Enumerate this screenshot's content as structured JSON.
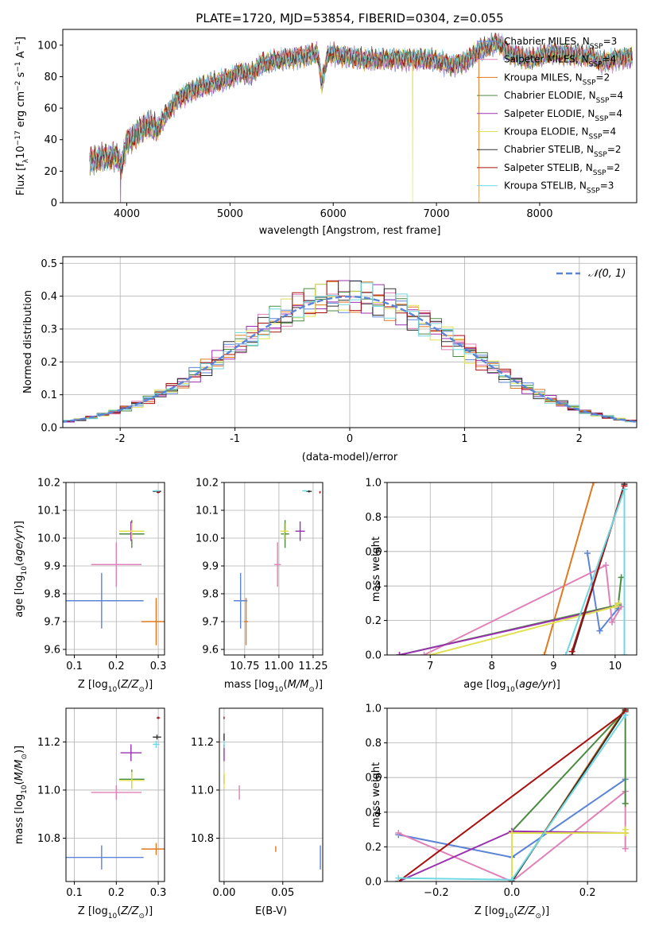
{
  "colors": {
    "Chabrier MILES": "#5b84d6",
    "Salpeter MILES": "#e080b8",
    "Kroupa MILES": "#e07820",
    "Chabrier ELODIE": "#4a8a40",
    "Salpeter ELODIE": "#9a30b0",
    "Kroupa ELODIE": "#e0e050",
    "Chabrier STELIB": "#303030",
    "Salpeter STELIB": "#aa1010",
    "Kroupa STELIB": "#70d8e0"
  },
  "model_order": [
    "Chabrier MILES",
    "Salpeter MILES",
    "Kroupa MILES",
    "Chabrier ELODIE",
    "Salpeter ELODIE",
    "Kroupa ELODIE",
    "Chabrier STELIB",
    "Salpeter STELIB",
    "Kroupa STELIB"
  ],
  "chart_data": [
    {
      "id": "spectrum",
      "type": "line",
      "title": "PLATE=1720, MJD=53854, FIBERID=0304, z=0.055",
      "xlabel": "wavelength [Angstrom, rest frame]",
      "ylabel": "Flux [f_λ10^-17 erg cm^-2 s^-1 A^-1]",
      "xlim": [
        3380,
        8940
      ],
      "ylim": [
        0,
        110
      ],
      "xticks": [
        4000,
        5000,
        6000,
        7000,
        8000
      ],
      "yticks": [
        0,
        20,
        40,
        60,
        80,
        100
      ],
      "continuum": {
        "x": [
          3640,
          3700,
          3800,
          3900,
          3950,
          4000,
          4100,
          4200,
          4300,
          4400,
          4500,
          4600,
          4700,
          4800,
          4900,
          5000,
          5100,
          5200,
          5300,
          5500,
          5700,
          5850,
          5890,
          5950,
          6100,
          6300,
          6500,
          6700,
          6900,
          7000,
          7150,
          7300,
          7400,
          7500,
          7600,
          7700,
          7900,
          8100,
          8300,
          8500,
          8600,
          8800
        ],
        "y": [
          26,
          28,
          29,
          29,
          24,
          38,
          44,
          50,
          47,
          58,
          66,
          70,
          73,
          75,
          77,
          79,
          83,
          81,
          88,
          91,
          93,
          95,
          75,
          95,
          93,
          91,
          91,
          91,
          91,
          90,
          87,
          90,
          96,
          99,
          102,
          95,
          91,
          95,
          94,
          93,
          89,
          92
        ]
      },
      "dropouts": [
        {
          "series": "Salpeter ELODIE",
          "x": 3940
        },
        {
          "series": "Kroupa ELODIE",
          "x": 6770
        },
        {
          "series": "Kroupa MILES",
          "x": 7410
        }
      ],
      "legend": [
        {
          "series": "Chabrier MILES",
          "label": "Chabrier MILES, N",
          "sub": "SSP",
          "value": "=3"
        },
        {
          "series": "Salpeter MILES",
          "label": "Salpeter MILES, N",
          "sub": "SSP",
          "value": "=4"
        },
        {
          "series": "Kroupa MILES",
          "label": "Kroupa MILES, N",
          "sub": "SSP",
          "value": "=2"
        },
        {
          "series": "Chabrier ELODIE",
          "label": "Chabrier ELODIE, N",
          "sub": "SSP",
          "value": "=4"
        },
        {
          "series": "Salpeter ELODIE",
          "label": "Salpeter ELODIE, N",
          "sub": "SSP",
          "value": "=4"
        },
        {
          "series": "Kroupa ELODIE",
          "label": "Kroupa ELODIE, N",
          "sub": "SSP",
          "value": "=4"
        },
        {
          "series": "Chabrier STELIB",
          "label": "Chabrier STELIB, N",
          "sub": "SSP",
          "value": "=2"
        },
        {
          "series": "Salpeter STELIB",
          "label": "Salpeter STELIB, N",
          "sub": "SSP",
          "value": "=2"
        },
        {
          "series": "Kroupa STELIB",
          "label": "Kroupa STELIB, N",
          "sub": "SSP",
          "value": "=3"
        }
      ],
      "legend_placement": "top-right",
      "grid": false
    },
    {
      "id": "residuals",
      "type": "histogram",
      "xlabel": "(data-model)/error",
      "ylabel": "Normed distribution",
      "xlim": [
        -2.5,
        2.5
      ],
      "ylim": [
        0,
        0.52
      ],
      "xticks": [
        -2,
        -1,
        0,
        1,
        2
      ],
      "yticks": [
        0.0,
        0.1,
        0.2,
        0.3,
        0.4,
        0.5
      ],
      "bin_width": 0.1,
      "reference": {
        "name": "N(0,1)",
        "label": "𝒩(0, 1)",
        "sigma": 1,
        "color": "#5b84d6"
      },
      "legend_placement": "top-right",
      "grid": true
    },
    {
      "id": "age_vs_Z",
      "type": "errorbar",
      "xlabel": "Z [log10(Z/Z⊙)]",
      "ylabel": "age [log10(age/yr)]",
      "xlim": [
        0.08,
        0.315
      ],
      "ylim": [
        9.58,
        10.2
      ],
      "xticks": [
        0.1,
        0.2,
        0.3
      ],
      "yticks": [
        9.6,
        9.7,
        9.8,
        9.9,
        10.0,
        10.1,
        10.2
      ],
      "grid": true,
      "points": [
        {
          "series": "Chabrier MILES",
          "x": 0.165,
          "y": 9.775,
          "xerr": 0.1,
          "yerr": 0.1
        },
        {
          "series": "Salpeter MILES",
          "x": 0.2,
          "y": 9.905,
          "xerr": 0.06,
          "yerr": 0.08
        },
        {
          "series": "Kroupa MILES",
          "x": 0.295,
          "y": 9.7,
          "xerr": 0.035,
          "yerr": 0.085
        },
        {
          "series": "Chabrier ELODIE",
          "x": 0.237,
          "y": 10.015,
          "xerr": 0.03,
          "yerr": 0.05
        },
        {
          "series": "Salpeter ELODIE",
          "x": 0.235,
          "y": 10.025,
          "xerr": 0.025,
          "yerr": 0.035
        },
        {
          "series": "Kroupa ELODIE",
          "x": 0.237,
          "y": 10.025,
          "xerr": 0.03,
          "yerr": 0.03
        },
        {
          "series": "Chabrier STELIB",
          "x": 0.297,
          "y": 10.168,
          "xerr": 0.01,
          "yerr": 0.004
        },
        {
          "series": "Salpeter STELIB",
          "x": 0.3,
          "y": 10.165,
          "xerr": 0.004,
          "yerr": 0.004
        },
        {
          "series": "Kroupa STELIB",
          "x": 0.295,
          "y": 10.17,
          "xerr": 0.008,
          "yerr": 0.003
        }
      ]
    },
    {
      "id": "age_vs_mass",
      "type": "errorbar",
      "xlabel": "mass [log10(M/M⊙)]",
      "ylabel": "",
      "xlim": [
        10.6,
        11.32
      ],
      "ylim": [
        9.58,
        10.2
      ],
      "xticks": [
        10.75,
        11.0,
        11.25
      ],
      "yticks": [
        9.6,
        9.7,
        9.8,
        9.9,
        10.0,
        10.1,
        10.2
      ],
      "grid": true,
      "points": [
        {
          "series": "Chabrier MILES",
          "x": 10.72,
          "y": 9.775,
          "xerr": 0.05,
          "yerr": 0.1
        },
        {
          "series": "Salpeter MILES",
          "x": 10.99,
          "y": 9.905,
          "xerr": 0.025,
          "yerr": 0.08
        },
        {
          "series": "Kroupa MILES",
          "x": 10.76,
          "y": 9.7,
          "xerr": 0.015,
          "yerr": 0.085
        },
        {
          "series": "Chabrier ELODIE",
          "x": 11.045,
          "y": 10.015,
          "xerr": 0.03,
          "yerr": 0.05
        },
        {
          "series": "Salpeter ELODIE",
          "x": 11.155,
          "y": 10.025,
          "xerr": 0.035,
          "yerr": 0.035
        },
        {
          "series": "Kroupa ELODIE",
          "x": 11.04,
          "y": 10.025,
          "xerr": 0.03,
          "yerr": 0.03
        },
        {
          "series": "Chabrier STELIB",
          "x": 11.22,
          "y": 10.168,
          "xerr": 0.02,
          "yerr": 0.004
        },
        {
          "series": "Salpeter STELIB",
          "x": 11.3,
          "y": 10.165,
          "xerr": 0.005,
          "yerr": 0.004
        },
        {
          "series": "Kroupa STELIB",
          "x": 11.19,
          "y": 10.17,
          "xerr": 0.02,
          "yerr": 0.003
        }
      ]
    },
    {
      "id": "weight_vs_age",
      "type": "line",
      "xlabel": "age [log10(age/yr)]",
      "ylabel": "mass weight",
      "xlim": [
        6.3,
        10.35
      ],
      "ylim": [
        0,
        1
      ],
      "xticks": [
        7,
        8,
        9,
        10
      ],
      "yticks": [
        0.0,
        0.2,
        0.4,
        0.6,
        0.8,
        1.0
      ],
      "grid": true,
      "series": [
        {
          "series": "Chabrier MILES",
          "x": [
            9.55,
            9.75,
            10.05
          ],
          "y": [
            0.59,
            0.14,
            0.27
          ]
        },
        {
          "series": "Salpeter MILES",
          "x": [
            6.9,
            9.85,
            9.95,
            10.1
          ],
          "y": [
            0.0,
            0.52,
            0.19,
            0.28
          ]
        },
        {
          "series": "Kroupa MILES",
          "x": [
            8.85,
            9.65
          ],
          "y": [
            0.0,
            1.0
          ]
        },
        {
          "series": "Chabrier ELODIE",
          "x": [
            6.5,
            10.05,
            10.1
          ],
          "y": [
            0.0,
            0.29,
            0.45
          ]
        },
        {
          "series": "Salpeter ELODIE",
          "x": [
            6.5,
            10.0,
            10.05
          ],
          "y": [
            0.0,
            0.28,
            0.3
          ]
        },
        {
          "series": "Kroupa ELODIE",
          "x": [
            7.0,
            10.0,
            10.05
          ],
          "y": [
            0.0,
            0.28,
            0.3
          ]
        },
        {
          "series": "Chabrier STELIB",
          "x": [
            9.3,
            10.15
          ],
          "y": [
            0.0,
            0.99
          ]
        },
        {
          "series": "Salpeter STELIB",
          "x": [
            9.3,
            10.15
          ],
          "y": [
            0.02,
            0.98
          ]
        },
        {
          "series": "Kroupa STELIB",
          "x": [
            9.2,
            10.15,
            10.15
          ],
          "y": [
            0.0,
            0.96,
            0.0
          ]
        }
      ]
    },
    {
      "id": "mass_vs_Z",
      "type": "errorbar",
      "xlabel": "Z [log10(Z/Z⊙)]",
      "ylabel": "mass [log10(M/M⊙)]",
      "xlim": [
        0.08,
        0.315
      ],
      "ylim": [
        10.62,
        11.34
      ],
      "xticks": [
        0.1,
        0.2,
        0.3
      ],
      "yticks": [
        10.8,
        11.0,
        11.2
      ],
      "grid": true,
      "points": [
        {
          "series": "Chabrier MILES",
          "x": 0.165,
          "y": 10.72,
          "xerr": 0.1,
          "yerr": 0.05
        },
        {
          "series": "Salpeter MILES",
          "x": 0.2,
          "y": 10.99,
          "xerr": 0.06,
          "yerr": 0.03
        },
        {
          "series": "Kroupa MILES",
          "x": 0.295,
          "y": 10.755,
          "xerr": 0.035,
          "yerr": 0.025
        },
        {
          "series": "Chabrier ELODIE",
          "x": 0.237,
          "y": 11.045,
          "xerr": 0.03,
          "yerr": 0.04
        },
        {
          "series": "Salpeter ELODIE",
          "x": 0.235,
          "y": 11.155,
          "xerr": 0.025,
          "yerr": 0.035
        },
        {
          "series": "Kroupa ELODIE",
          "x": 0.237,
          "y": 11.04,
          "xerr": 0.03,
          "yerr": 0.035
        },
        {
          "series": "Chabrier STELIB",
          "x": 0.297,
          "y": 11.22,
          "xerr": 0.01,
          "yerr": 0.01
        },
        {
          "series": "Salpeter STELIB",
          "x": 0.3,
          "y": 11.3,
          "xerr": 0.004,
          "yerr": 0.005
        },
        {
          "series": "Kroupa STELIB",
          "x": 0.295,
          "y": 11.19,
          "xerr": 0.008,
          "yerr": 0.015
        }
      ]
    },
    {
      "id": "mass_vs_ebv",
      "type": "errorbar",
      "xlabel": "E(B-V)",
      "ylabel": "",
      "xlim": [
        -0.004,
        0.084
      ],
      "ylim": [
        10.62,
        11.34
      ],
      "xticks": [
        0.0,
        0.05
      ],
      "xtick_labels": [
        "0.00",
        "0.05"
      ],
      "yticks": [
        10.8,
        11.0,
        11.2
      ],
      "grid": true,
      "points": [
        {
          "series": "Chabrier MILES",
          "x": 0.082,
          "y": 10.72,
          "xerr": 0,
          "yerr": 0.05
        },
        {
          "series": "Salpeter MILES",
          "x": 0.013,
          "y": 10.99,
          "xerr": 0,
          "yerr": 0.03
        },
        {
          "series": "Kroupa MILES",
          "x": 0.044,
          "y": 10.755,
          "xerr": 0,
          "yerr": 0.012
        },
        {
          "series": "Chabrier ELODIE",
          "x": 0.0,
          "y": 11.045,
          "xerr": 0,
          "yerr": 0.02
        },
        {
          "series": "Salpeter ELODIE",
          "x": 0.0,
          "y": 11.155,
          "xerr": 0,
          "yerr": 0.035
        },
        {
          "series": "Kroupa ELODIE",
          "x": 0.0,
          "y": 11.04,
          "xerr": 0,
          "yerr": 0.035
        },
        {
          "series": "Chabrier STELIB",
          "x": 0.0,
          "y": 11.22,
          "xerr": 0,
          "yerr": 0.015
        },
        {
          "series": "Salpeter STELIB",
          "x": 0.0,
          "y": 11.3,
          "xerr": 0,
          "yerr": 0.005
        },
        {
          "series": "Kroupa STELIB",
          "x": 0.0,
          "y": 11.19,
          "xerr": 0,
          "yerr": 0.015
        }
      ]
    },
    {
      "id": "weight_vs_Z",
      "type": "line",
      "xlabel": "Z [log10(Z/Z⊙)]",
      "ylabel": "mass weight",
      "xlim": [
        -0.33,
        0.33
      ],
      "ylim": [
        0,
        1
      ],
      "xticks": [
        -0.2,
        0.0,
        0.2
      ],
      "xtick_labels": [
        "−0.2",
        "0.0",
        "0.2"
      ],
      "yticks": [
        0.0,
        0.2,
        0.4,
        0.6,
        0.8,
        1.0
      ],
      "grid": true,
      "series": [
        {
          "series": "Chabrier MILES",
          "x": [
            -0.3,
            0.0,
            0.3
          ],
          "y": [
            0.27,
            0.14,
            0.59
          ]
        },
        {
          "series": "Salpeter MILES",
          "x": [
            -0.3,
            0.0,
            0.3,
            0.3
          ],
          "y": [
            0.28,
            0.0,
            0.52,
            0.19
          ]
        },
        {
          "series": "Kroupa MILES",
          "x": [
            0.0,
            0.3
          ],
          "y": [
            0.0,
            1.0
          ]
        },
        {
          "series": "Chabrier ELODIE",
          "x": [
            0.0,
            0.0,
            0.3,
            0.3
          ],
          "y": [
            0.0,
            0.29,
            0.99,
            0.45
          ]
        },
        {
          "series": "Salpeter ELODIE",
          "x": [
            -0.3,
            0.0,
            0.3
          ],
          "y": [
            0.0,
            0.29,
            0.28
          ]
        },
        {
          "series": "Kroupa ELODIE",
          "x": [
            0.0,
            0.0,
            0.3,
            0.3
          ],
          "y": [
            0.0,
            0.28,
            0.28,
            0.3
          ]
        },
        {
          "series": "Chabrier STELIB",
          "x": [
            0.0,
            0.3
          ],
          "y": [
            0.0,
            0.99
          ]
        },
        {
          "series": "Salpeter STELIB",
          "x": [
            -0.3,
            0.3
          ],
          "y": [
            0.0,
            0.98
          ]
        },
        {
          "series": "Kroupa STELIB",
          "x": [
            -0.3,
            0.0,
            0.3
          ],
          "y": [
            0.02,
            0.01,
            0.96
          ]
        }
      ]
    }
  ]
}
